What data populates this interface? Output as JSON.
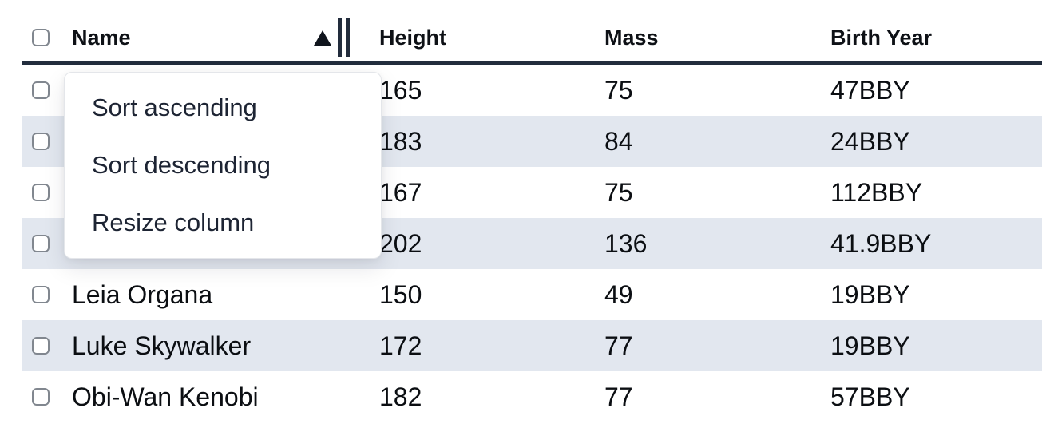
{
  "page": {
    "background": "#ffffff"
  },
  "table": {
    "columns": {
      "select": "",
      "name": "Name",
      "height": "Height",
      "mass": "Mass",
      "birth_year": "Birth Year"
    },
    "sort": {
      "column": "Name",
      "direction": "ascending"
    },
    "stripe_color": "#e2e7ef",
    "header_border_color": "#222d3d",
    "rows": [
      {
        "name": "",
        "height": "165",
        "mass": "75",
        "birth_year": "47BBY",
        "striped": false,
        "selected": false
      },
      {
        "name": "",
        "height": "183",
        "mass": "84",
        "birth_year": "24BBY",
        "striped": true,
        "selected": false
      },
      {
        "name": "",
        "height": "167",
        "mass": "75",
        "birth_year": "112BBY",
        "striped": false,
        "selected": false
      },
      {
        "name": "",
        "height": "202",
        "mass": "136",
        "birth_year": "41.9BBY",
        "striped": true,
        "selected": false
      },
      {
        "name": "Leia Organa",
        "height": "150",
        "mass": "49",
        "birth_year": "19BBY",
        "striped": false,
        "selected": false
      },
      {
        "name": "Luke Skywalker",
        "height": "172",
        "mass": "77",
        "birth_year": "19BBY",
        "striped": true,
        "selected": false
      },
      {
        "name": "Obi-Wan Kenobi",
        "height": "182",
        "mass": "77",
        "birth_year": "57BBY",
        "striped": false,
        "selected": false
      }
    ]
  },
  "icons": {
    "sort_indicator": "triangle-up",
    "resize_handle": "double-vertical-bars",
    "row_selector": "checkbox-unchecked"
  },
  "context_menu": {
    "items": [
      {
        "label": "Sort ascending"
      },
      {
        "label": "Sort descending"
      },
      {
        "label": "Resize column"
      }
    ]
  }
}
